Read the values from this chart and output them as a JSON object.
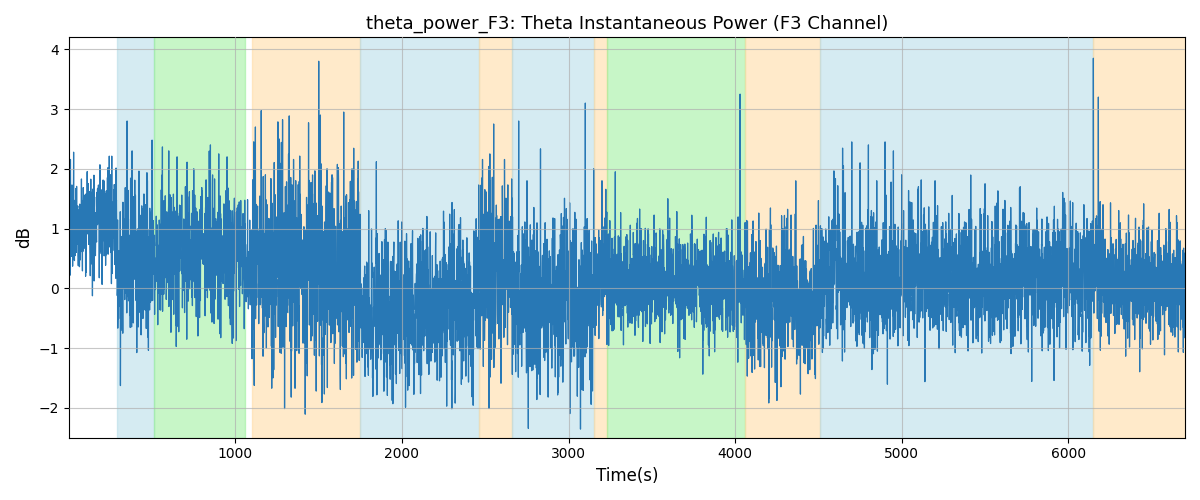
{
  "title": "theta_power_F3: Theta Instantaneous Power (F3 Channel)",
  "xlabel": "Time(s)",
  "ylabel": "dB",
  "ylim": [
    -2.5,
    4.2
  ],
  "xlim": [
    0,
    6700
  ],
  "bg_color": "#ffffff",
  "line_color": "#2878b5",
  "line_width": 0.9,
  "grid_color": "#b0b0b0",
  "grid_alpha": 0.7,
  "seed": 12345,
  "n_points": 6700,
  "figsize": [
    12,
    5
  ],
  "dpi": 100,
  "colored_bands": [
    {
      "start": 290,
      "end": 510,
      "color": "#add8e6",
      "alpha": 0.5
    },
    {
      "start": 510,
      "end": 1060,
      "color": "#90ee90",
      "alpha": 0.5
    },
    {
      "start": 1100,
      "end": 1750,
      "color": "#ffd9a0",
      "alpha": 0.55
    },
    {
      "start": 1750,
      "end": 2460,
      "color": "#add8e6",
      "alpha": 0.5
    },
    {
      "start": 2460,
      "end": 2660,
      "color": "#ffd9a0",
      "alpha": 0.55
    },
    {
      "start": 2660,
      "end": 3150,
      "color": "#add8e6",
      "alpha": 0.5
    },
    {
      "start": 3150,
      "end": 3230,
      "color": "#ffd9a0",
      "alpha": 0.55
    },
    {
      "start": 3230,
      "end": 4060,
      "color": "#90ee90",
      "alpha": 0.5
    },
    {
      "start": 4060,
      "end": 4510,
      "color": "#ffd9a0",
      "alpha": 0.55
    },
    {
      "start": 4510,
      "end": 6150,
      "color": "#add8e6",
      "alpha": 0.5
    },
    {
      "start": 6150,
      "end": 6750,
      "color": "#ffd9a0",
      "alpha": 0.55
    }
  ],
  "xticks": [
    1000,
    2000,
    3000,
    4000,
    5000,
    6000
  ],
  "yticks": [
    -2,
    -1,
    0,
    1,
    2,
    3,
    4
  ],
  "regions": [
    {
      "start": 0,
      "end": 290,
      "mean": 1.1,
      "std": 0.45
    },
    {
      "start": 290,
      "end": 510,
      "mean": 0.4,
      "std": 0.65
    },
    {
      "start": 510,
      "end": 1060,
      "mean": 0.6,
      "std": 0.55
    },
    {
      "start": 1060,
      "end": 1100,
      "mean": 0.1,
      "std": 0.4
    },
    {
      "start": 1100,
      "end": 1750,
      "mean": 0.3,
      "std": 0.85
    },
    {
      "start": 1750,
      "end": 2460,
      "mean": -0.3,
      "std": 0.65
    },
    {
      "start": 2460,
      "end": 2660,
      "mean": 0.3,
      "std": 0.75
    },
    {
      "start": 2660,
      "end": 3150,
      "mean": -0.2,
      "std": 0.75
    },
    {
      "start": 3150,
      "end": 3230,
      "mean": 0.3,
      "std": 0.5
    },
    {
      "start": 3230,
      "end": 4060,
      "mean": 0.1,
      "std": 0.45
    },
    {
      "start": 4060,
      "end": 4510,
      "mean": -0.2,
      "std": 0.6
    },
    {
      "start": 4510,
      "end": 6150,
      "mean": 0.2,
      "std": 0.55
    },
    {
      "start": 6150,
      "end": 6700,
      "mean": 0.15,
      "std": 0.5
    }
  ],
  "spikes": [
    [
      250,
      1.9
    ],
    [
      350,
      2.8
    ],
    [
      380,
      2.3
    ],
    [
      600,
      2.3
    ],
    [
      650,
      2.2
    ],
    [
      700,
      1.7
    ],
    [
      750,
      2.0
    ],
    [
      850,
      2.4
    ],
    [
      900,
      2.25
    ],
    [
      950,
      2.2
    ],
    [
      1120,
      2.7
    ],
    [
      1180,
      1.9
    ],
    [
      1500,
      3.8
    ],
    [
      1510,
      2.9
    ],
    [
      1550,
      2.0
    ],
    [
      1580,
      1.9
    ],
    [
      1650,
      2.95
    ],
    [
      1700,
      2.0
    ],
    [
      1800,
      1.3
    ],
    [
      1900,
      1.0
    ],
    [
      2480,
      1.1
    ],
    [
      2530,
      1.8
    ],
    [
      2550,
      2.75
    ],
    [
      2700,
      2.8
    ],
    [
      2750,
      1.8
    ],
    [
      3100,
      3.1
    ],
    [
      3150,
      2.0
    ],
    [
      3200,
      1.8
    ],
    [
      3280,
      1.95
    ],
    [
      3350,
      0.9
    ],
    [
      3400,
      0.75
    ],
    [
      3450,
      0.8
    ],
    [
      3500,
      0.7
    ],
    [
      3600,
      0.8
    ],
    [
      3780,
      0.65
    ],
    [
      3800,
      0.6
    ],
    [
      3850,
      0.8
    ],
    [
      3900,
      0.9
    ],
    [
      3950,
      1.0
    ],
    [
      4030,
      3.25
    ],
    [
      4060,
      1.1
    ],
    [
      4100,
      0.9
    ],
    [
      4150,
      0.8
    ],
    [
      4520,
      1.0
    ],
    [
      4600,
      1.5
    ],
    [
      4650,
      2.05
    ],
    [
      4700,
      2.45
    ],
    [
      4750,
      2.1
    ],
    [
      4800,
      2.4
    ],
    [
      4850,
      1.8
    ],
    [
      4900,
      2.45
    ],
    [
      4950,
      2.3
    ],
    [
      5000,
      1.9
    ],
    [
      5100,
      1.7
    ],
    [
      5200,
      1.8
    ],
    [
      5500,
      1.75
    ],
    [
      6150,
      3.85
    ],
    [
      6180,
      3.2
    ]
  ]
}
